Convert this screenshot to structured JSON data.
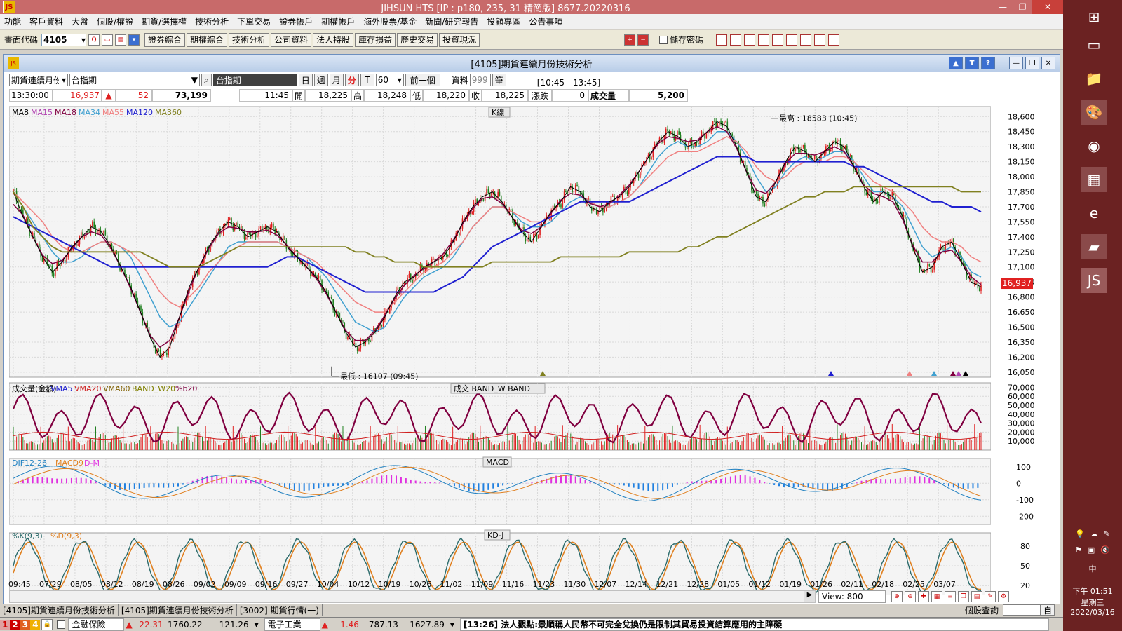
{
  "app": {
    "title": "JIHSUN HTS      [IP : p180, 235, 31 精簡版] 8677.20220316",
    "icon_label": "JS",
    "window_buttons": {
      "minimize": "—",
      "restore": "❐",
      "close": "✕"
    }
  },
  "menu": [
    "功能",
    "客戶資料",
    "大盤",
    "個股/權證",
    "期貨/選擇權",
    "技術分析",
    "下單交易",
    "證券帳戶",
    "期權帳戶",
    "海外股票/基金",
    "新聞/研究報告",
    "投顧專區",
    "公告事項"
  ],
  "toolbar": {
    "code_label": "畫面代碼",
    "code_value": "4105",
    "buttons": [
      "證券綜合",
      "期權綜合",
      "技術分析",
      "公司資料",
      "法人持股",
      "庫存損益",
      "歷史交易",
      "投資現況"
    ],
    "save_password": "儲存密碼"
  },
  "window": {
    "title": "[4105]期貨連續月份技術分析",
    "tools": [
      "▲",
      "T",
      "?"
    ],
    "controls": [
      "—",
      "❐",
      "✕"
    ]
  },
  "row1": {
    "series_select": "期貨連續月份",
    "symbol_select": "台指期",
    "name_box": "台指期",
    "periods": [
      "日",
      "週",
      "月",
      "分",
      "T"
    ],
    "active_period": "分",
    "interval": "60",
    "prev": "前一個",
    "data_label": "資料",
    "data_count": "999",
    "unit": "筆",
    "time_range": "[10:45 - 13:45]"
  },
  "row2": {
    "time": "13:30:00",
    "price": "16,937",
    "arrow": "▲",
    "change": "52",
    "volume_total": "73,199",
    "bar_time": "11:45",
    "open_label": "開",
    "open": "18,225",
    "high_label": "高",
    "high": "18,248",
    "low_label": "低",
    "low": "18,220",
    "close_label": "收",
    "close": "18,225",
    "chg_label": "漲跌",
    "chg": "0",
    "vol_label": "成交量",
    "vol": "5,200"
  },
  "chart_data": [
    {
      "type": "candlestick",
      "title": "K線",
      "legend": [
        {
          "name": "MA8",
          "color": "#000000"
        },
        {
          "name": "MA15",
          "color": "#b040b0"
        },
        {
          "name": "MA18",
          "color": "#800040"
        },
        {
          "name": "MA34",
          "color": "#40a0d0"
        },
        {
          "name": "MA55",
          "color": "#f08080"
        },
        {
          "name": "MA120",
          "color": "#2020d0"
        },
        {
          "name": "MA360",
          "color": "#808020"
        }
      ],
      "ylim": [
        16000,
        18700
      ],
      "yticks": [
        18600,
        18450,
        18300,
        18150,
        18000,
        17850,
        17700,
        17550,
        17400,
        17250,
        17100,
        16950,
        16800,
        16650,
        16500,
        16350,
        16200,
        16050
      ],
      "last_price_label": "16,937",
      "annotations": [
        {
          "text": "最高 : 18583 (10:45)",
          "value": 18583
        },
        {
          "text": "最低 : 16107 (09:45)",
          "value": 16107
        }
      ],
      "price_path": [
        17850,
        17600,
        17400,
        17200,
        17050,
        17150,
        17300,
        17400,
        17500,
        17450,
        17300,
        17100,
        16900,
        16650,
        16400,
        16200,
        16300,
        16600,
        16900,
        17100,
        17300,
        17450,
        17550,
        17500,
        17400,
        17450,
        17500,
        17450,
        17300,
        17200,
        17100,
        17000,
        16850,
        16650,
        16450,
        16300,
        16350,
        16450,
        16600,
        16800,
        16950,
        17000,
        17100,
        17150,
        17200,
        17350,
        17550,
        17700,
        17800,
        17850,
        17750,
        17600,
        17450,
        17350,
        17500,
        17650,
        17750,
        17900,
        17850,
        17700,
        17650,
        17750,
        17800,
        17900,
        18050,
        18200,
        18350,
        18450,
        18400,
        18300,
        18350,
        18450,
        18550,
        18500,
        18300,
        18050,
        17800,
        17750,
        17950,
        18150,
        18300,
        18250,
        18150,
        18250,
        18350,
        18300,
        18100,
        17900,
        17750,
        17850,
        17800,
        17600,
        17300,
        17050,
        17100,
        17300,
        17350,
        17150,
        16950,
        16900
      ],
      "ma_paths": {
        "MA34": [
          17850,
          17700,
          17550,
          17400,
          17250,
          17150,
          17150,
          17200,
          17300,
          17350,
          17350,
          17300,
          17200,
          17000,
          16800,
          16600,
          16500,
          16550,
          16700,
          16850,
          17000,
          17150,
          17300,
          17350,
          17350,
          17350,
          17350,
          17350,
          17300,
          17250,
          17200,
          17100,
          17000,
          16850,
          16700,
          16550,
          16500,
          16450,
          16500,
          16650,
          16800,
          16900,
          17000,
          17050,
          17100,
          17200,
          17350,
          17500,
          17600,
          17700,
          17700,
          17650,
          17550,
          17500,
          17500,
          17550,
          17650,
          17750,
          17800,
          17750,
          17700,
          17700,
          17750,
          17800,
          17900,
          18050,
          18200,
          18300,
          18350,
          18300,
          18300,
          18350,
          18450,
          18450,
          18350,
          18200,
          18000,
          17850,
          17900,
          18050,
          18150,
          18200,
          18150,
          18200,
          18250,
          18250,
          18150,
          18000,
          17850,
          17850,
          17800,
          17700,
          17500,
          17300,
          17200,
          17250,
          17300,
          17200,
          17050,
          17000
        ],
        "MA55": [
          17850,
          17750,
          17650,
          17550,
          17400,
          17300,
          17250,
          17250,
          17300,
          17350,
          17350,
          17300,
          17250,
          17150,
          17000,
          16850,
          16750,
          16700,
          16800,
          16900,
          17050,
          17150,
          17250,
          17300,
          17350,
          17350,
          17350,
          17350,
          17300,
          17250,
          17200,
          17150,
          17050,
          16950,
          16850,
          16750,
          16700,
          16650,
          16650,
          16750,
          16850,
          16950,
          17050,
          17100,
          17150,
          17250,
          17350,
          17500,
          17600,
          17700,
          17700,
          17650,
          17600,
          17550,
          17550,
          17600,
          17650,
          17700,
          17750,
          17750,
          17700,
          17700,
          17750,
          17800,
          17900,
          18000,
          18100,
          18200,
          18250,
          18250,
          18250,
          18300,
          18350,
          18400,
          18350,
          18250,
          18100,
          18000,
          17950,
          18000,
          18100,
          18150,
          18150,
          18150,
          18200,
          18200,
          18150,
          18050,
          17950,
          17900,
          17850,
          17750,
          17650,
          17500,
          17400,
          17350,
          17350,
          17300,
          17200,
          17150
        ],
        "MA120": [
          17600,
          17550,
          17500,
          17450,
          17400,
          17350,
          17300,
          17250,
          17200,
          17150,
          17100,
          17100,
          17100,
          17100,
          17100,
          17100,
          17100,
          17100,
          17100,
          17100,
          17100,
          17100,
          17100,
          17100,
          17100,
          17100,
          17100,
          17150,
          17200,
          17200,
          17150,
          17100,
          17050,
          17000,
          16950,
          16900,
          16850,
          16850,
          16850,
          16850,
          16850,
          16850,
          16850,
          16850,
          16900,
          16950,
          17000,
          17100,
          17200,
          17300,
          17350,
          17400,
          17450,
          17500,
          17550,
          17600,
          17650,
          17700,
          17750,
          17750,
          17750,
          17750,
          17750,
          17750,
          17800,
          17850,
          17900,
          17950,
          18000,
          18050,
          18100,
          18150,
          18200,
          18200,
          18200,
          18200,
          18150,
          18150,
          18150,
          18150,
          18150,
          18150,
          18150,
          18150,
          18150,
          18150,
          18100,
          18100,
          18050,
          18000,
          17950,
          17900,
          17850,
          17800,
          17750,
          17750,
          17700,
          17700,
          17700,
          17650
        ]
      }
    },
    {
      "type": "bar",
      "title": "成交 BAND_W BAND",
      "legend": [
        {
          "name": "成交量(金額)",
          "color": "#000000"
        },
        {
          "name": "VMA5",
          "color": "#2020d0"
        },
        {
          "name": "VMA20",
          "color": "#d02020"
        },
        {
          "name": "VMA60",
          "color": "#806000"
        },
        {
          "name": "BAND_W20",
          "color": "#808000"
        },
        {
          "name": "%b20",
          "color": "#800040"
        }
      ],
      "ylim": [
        0,
        75000
      ],
      "yticks": [
        70000,
        60000,
        50000,
        40000,
        30000,
        20000,
        10000
      ],
      "ytick_labels": [
        "70,000",
        "60,000",
        "50,000",
        "40,000",
        "30,000",
        "20,000",
        "10,000"
      ]
    },
    {
      "type": "bar",
      "title": "MACD",
      "legend": [
        {
          "name": "DIF12-26",
          "color": "#2080c0"
        },
        {
          "name": "MACD9",
          "color": "#e08020"
        },
        {
          "name": "D-M",
          "color": "#e030e0"
        }
      ],
      "ylim": [
        -250,
        150
      ],
      "yticks": [
        100,
        0,
        -100,
        -200
      ],
      "ytick_labels": [
        "100",
        "0",
        "-100",
        "-200"
      ]
    },
    {
      "type": "line",
      "title": "KD-J",
      "legend": [
        {
          "name": "%K(9,3)",
          "color": "#2a6a6a"
        },
        {
          "name": "%D(9,3)",
          "color": "#e08020"
        }
      ],
      "ylim": [
        0,
        100
      ],
      "yticks": [
        80,
        50,
        20
      ],
      "ytick_labels": [
        "80",
        "50",
        "20"
      ]
    }
  ],
  "x_labels": [
    "09:45",
    "07/29",
    "08/05",
    "08/12",
    "08/19",
    "08/26",
    "09/02",
    "09/09",
    "09/16",
    "09/27",
    "10/04",
    "10/12",
    "10/19",
    "10/26",
    "11/02",
    "11/09",
    "11/16",
    "11/23",
    "11/30",
    "12/07",
    "12/14",
    "12/21",
    "12/28",
    "01/05",
    "01/12",
    "01/19",
    "01/26",
    "02/11",
    "02/18",
    "02/25",
    "03/07"
  ],
  "bottom": {
    "view_label": "View: 800"
  },
  "tabs": [
    "[4105]期貨連續月份技術分析",
    "[4105]期貨連續月份技術分析",
    "[3002] 期貨行情(一)"
  ],
  "status": {
    "nums": [
      "1",
      "2",
      "3",
      "4"
    ],
    "sector1": "金融保險",
    "s1_arrow": "▲",
    "s1_change": "22.31",
    "s1_index": "1760.22",
    "s1_vol": "121.26",
    "sector2": "電子工業",
    "s2_arrow": "▲",
    "s2_change": "1.46",
    "s2_index": "787.13",
    "s2_vol": "1627.89",
    "news": "[13:26] 法人觀點:景順稱人民幣不可完全兌換仍是限制其貿易投資結算應用的主障礙",
    "stock_query": "個股查詢",
    "query_btn": "自"
  },
  "clock": {
    "time": "下午 01:51",
    "weekday": "星期三",
    "date": "2022/03/16",
    "ime": "中"
  },
  "colors": {
    "up": "#e02020",
    "down": "#208020",
    "titlebar": "#c86a6a",
    "taskbar": "#6b2222"
  }
}
